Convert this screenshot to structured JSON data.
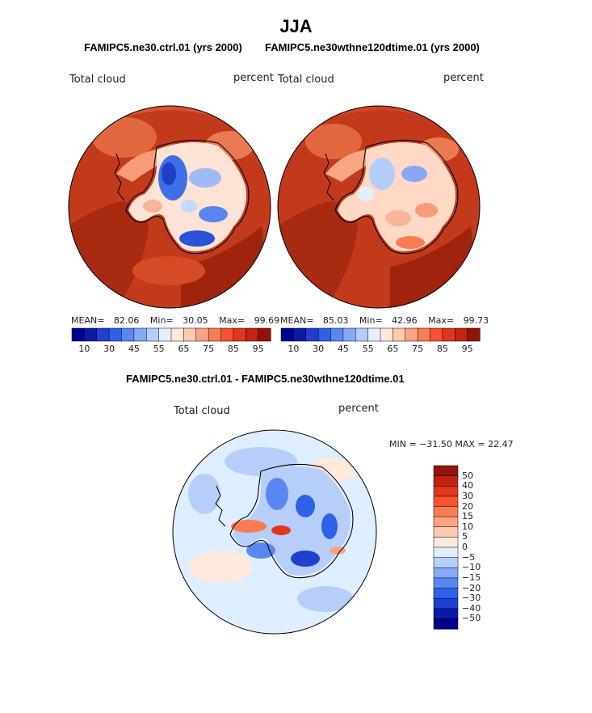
{
  "title": "JJA",
  "top_panels": {
    "left_title": "FAMIPC5.ne30.ctrl.01 (yrs 2000)",
    "right_title": "FAMIPC5.ne30wthne120dtime.01 (yrs 2000)",
    "left": {
      "field_label": "Total cloud",
      "units_label": "percent",
      "mean_label": "MEAN=",
      "mean": "82.06",
      "min_label": "Min=",
      "min": "30.05",
      "max_label": "Max=",
      "max": "99.69"
    },
    "right": {
      "field_label": "Total cloud",
      "units_label": "percent",
      "mean_label": "MEAN=",
      "mean": "85.03",
      "min_label": "Min=",
      "min": "42.96",
      "max_label": "Max=",
      "max": "99.73"
    },
    "colorbar": {
      "colors": [
        "#00008c",
        "#0a1aa8",
        "#1f3fd0",
        "#2f60e8",
        "#5a86f0",
        "#86a8f5",
        "#b4cdfa",
        "#e2efff",
        "#ffe8dc",
        "#ffc8b0",
        "#fca283",
        "#fa7c55",
        "#f4532c",
        "#e0361c",
        "#bf2512",
        "#941308"
      ],
      "tick_labels": [
        "10",
        "30",
        "45",
        "55",
        "65",
        "75",
        "85",
        "95"
      ]
    }
  },
  "diff_panel": {
    "title": "FAMIPC5.ne30.ctrl.01 - FAMIPC5.ne30wthne120dtime.01",
    "field_label": "Total cloud",
    "units_label": "percent",
    "minmax_text": "MIN = −31.50 MAX =  22.47",
    "colorbar": {
      "colors": [
        "#941308",
        "#bf2512",
        "#e0361c",
        "#f4532c",
        "#fa7c55",
        "#fca283",
        "#ffc8b0",
        "#ffe8dc",
        "#dfeeff",
        "#b7cefa",
        "#8aa9f5",
        "#5a86f0",
        "#2f60e8",
        "#1f3fd0",
        "#0a1aa8",
        "#00008c"
      ],
      "tick_labels": [
        "50",
        "40",
        "30",
        "20",
        "15",
        "10",
        "5",
        "0",
        "−5",
        "−10",
        "−15",
        "−20",
        "−30",
        "−40",
        "−50"
      ]
    }
  }
}
